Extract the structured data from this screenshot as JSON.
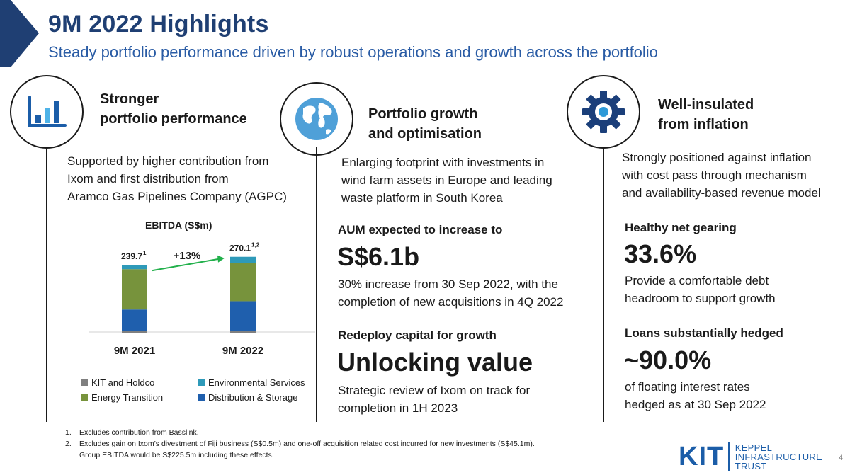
{
  "header": {
    "title": "9M 2022 Highlights",
    "subtitle": "Steady portfolio performance driven by robust operations and growth across the portfolio"
  },
  "columns": [
    {
      "icon": "bar-chart-icon",
      "heading_line1": "Stronger",
      "heading_line2": "portfolio performance",
      "text_lines": [
        "Supported by higher contribution from",
        "Ixom and first distribution from",
        "Aramco Gas Pipelines Company (AGPC)"
      ]
    },
    {
      "icon": "globe-icon",
      "heading_line1": "Portfolio growth",
      "heading_line2": "and optimisation",
      "text_lines": [
        "Enlarging footprint with investments in",
        "wind farm assets in Europe and leading",
        "waste platform in South Korea"
      ],
      "kpi1_label": "AUM expected to increase to",
      "kpi1_value": "S$6.1b",
      "kpi1_desc_lines": [
        "30% increase from 30 Sep 2022, with the",
        "completion of new acquisitions in 4Q 2022"
      ],
      "kpi2_label": "Redeploy capital for growth",
      "kpi2_value": "Unlocking value",
      "kpi2_desc_lines": [
        "Strategic review of Ixom on track for",
        "completion in 1H 2023"
      ]
    },
    {
      "icon": "gear-icon",
      "heading_line1": "Well-insulated",
      "heading_line2": "from inflation",
      "text_lines": [
        "Strongly positioned against inflation",
        "with cost pass through mechanism",
        "and availability-based revenue model"
      ],
      "kpi1_label": "Healthy net gearing",
      "kpi1_value": "33.6%",
      "kpi1_desc_lines": [
        "Provide a comfortable debt",
        "headroom to support growth"
      ],
      "kpi2_label": "Loans substantially hedged",
      "kpi2_value": "~90.0%",
      "kpi2_desc_lines": [
        "of floating interest rates",
        "hedged as at 30 Sep 2022"
      ]
    }
  ],
  "chart_data": {
    "type": "bar",
    "stacked": true,
    "title": "EBITDA (S$m)",
    "categories": [
      "9M 2021",
      "9M 2022"
    ],
    "totals": [
      239.7,
      270.1
    ],
    "total_labels": [
      "239.7",
      "270.1"
    ],
    "total_superscripts": [
      "1",
      "1,2"
    ],
    "growth_label": "+13%",
    "series": [
      {
        "name": "KIT and Holdco",
        "color": "#7f7f7f",
        "values": [
          -7,
          -7
        ]
      },
      {
        "name": "Distribution & Storage",
        "color": "#1f5fad",
        "values": [
          81,
          112
        ]
      },
      {
        "name": "Energy Transition",
        "color": "#77933c",
        "values": [
          150,
          142
        ]
      },
      {
        "name": "Environmental Services",
        "color": "#2e9ab9",
        "values": [
          16,
          23
        ]
      }
    ],
    "legend_order": [
      "KIT and Holdco",
      "Environmental Services",
      "Energy Transition",
      "Distribution & Storage"
    ],
    "legend_placement": "bottom"
  },
  "footnotes": {
    "n1": "1.",
    "t1": "Excludes contribution from Basslink.",
    "n2": "2.",
    "t2": "Excludes gain on Ixom’s divestment of Fiji business (S$0.5m) and one-off acquisition related cost incurred for new investments (S$45.1m).",
    "t2b": "Group EBITDA would be S$225.5m including these effects."
  },
  "logo": {
    "mark": "KIT",
    "line1": "KEPPEL",
    "line2": "INFRASTRUCTURE",
    "line3": "TRUST"
  },
  "page_number": "4",
  "colors": {
    "title": "#1f3f73",
    "subtitle": "#2a5ca5",
    "brand": "#1b5da8",
    "arrow": "#22b04b"
  }
}
